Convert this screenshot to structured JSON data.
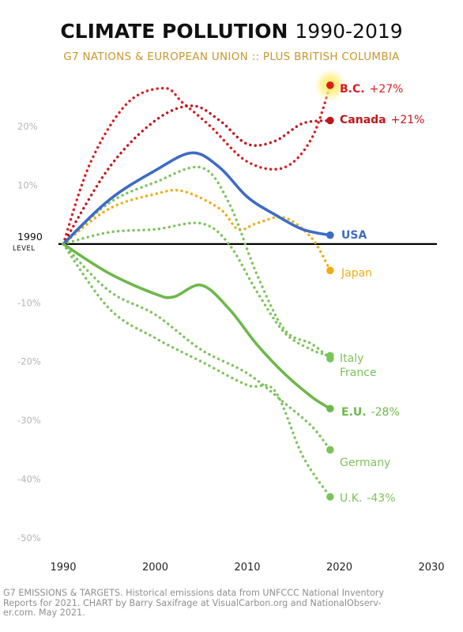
{
  "title": {
    "bold": "CLIMATE POLLUTION",
    "light": "1990-2019"
  },
  "subtitle": "G7 NATIONS & EUROPEAN UNION :: PLUS BRITISH COLUMBIA",
  "baseline": {
    "label": "1990",
    "sublabel": "LEVEL"
  },
  "footnote": "G7 EMISSIONS & TARGETS. Historical emissions data from UNFCCC National Inventory\nReports for 2021. CHART by Barry Saxifrage at VisualCarbon.org and NationalObserv-\ner.com. May 2021.",
  "colors": {
    "red": "#d91e1e",
    "darkred": "#c0161b",
    "blue": "#3d6cc4",
    "orange": "#f0ac16",
    "green": "#6db84a",
    "greenDot": "#7cc35a"
  },
  "chart_data": {
    "type": "line",
    "xlim": [
      1990,
      2030
    ],
    "ylim": [
      -50,
      30
    ],
    "xticks": [
      "1990",
      "2000",
      "2010",
      "2020",
      "2030"
    ],
    "yticks": [
      "20%",
      "10%",
      "",
      "-10%",
      "-20%",
      "-30%",
      "-40%",
      "-50%"
    ],
    "ytick_values": [
      20,
      10,
      0,
      -10,
      -20,
      -30,
      -40,
      -50
    ],
    "series": [
      {
        "name": "B.C.",
        "label": "B.C.",
        "value_label": "+27%",
        "color": "#d91e1e",
        "style": "dotted",
        "highlight": true,
        "x": [
          1990,
          1993,
          1997,
          2001,
          2003,
          2006,
          2010,
          2014,
          2017,
          2019
        ],
        "y": [
          0,
          14,
          24,
          26.5,
          24,
          20,
          14,
          13,
          18,
          27
        ]
      },
      {
        "name": "Canada",
        "label": "Canada",
        "value_label": "+21%",
        "color": "#c0161b",
        "style": "dotted",
        "x": [
          1990,
          1995,
          2000,
          2004,
          2007,
          2010,
          2013,
          2016,
          2019
        ],
        "y": [
          0,
          13,
          21,
          23.5,
          21,
          17,
          17.5,
          20.5,
          21
        ]
      },
      {
        "name": "USA",
        "label": "USA",
        "value_label": "",
        "color": "#3d6cc4",
        "style": "solid",
        "x": [
          1990,
          1995,
          2000,
          2004,
          2007,
          2010,
          2013,
          2016,
          2019
        ],
        "y": [
          0,
          7.5,
          12.5,
          15.5,
          13,
          8,
          5,
          2.5,
          1.5
        ]
      },
      {
        "name": "Japan",
        "label": "Japan",
        "value_label": "",
        "color": "#f0ac16",
        "style": "dotted",
        "x": [
          1990,
          1995,
          2000,
          2003,
          2007,
          2009,
          2011,
          2014,
          2017,
          2019
        ],
        "y": [
          0,
          6,
          8.5,
          9,
          6,
          2.5,
          3.5,
          4.5,
          1,
          -4.5
        ]
      },
      {
        "name": "Italy",
        "label": "Italy",
        "value_label": "",
        "color": "#7cc35a",
        "style": "dotted",
        "x": [
          1990,
          1995,
          2000,
          2005,
          2008,
          2011,
          2014,
          2017,
          2019
        ],
        "y": [
          0,
          7,
          10.5,
          13,
          7,
          -5,
          -14.5,
          -17,
          -19.5
        ]
      },
      {
        "name": "France",
        "label": "France",
        "value_label": "",
        "color": "#7cc35a",
        "style": "dotted",
        "x": [
          1990,
          1995,
          2000,
          2005,
          2008,
          2011,
          2014,
          2017,
          2019
        ],
        "y": [
          0,
          2,
          2.5,
          3.5,
          0,
          -8,
          -15,
          -18,
          -19
        ]
      },
      {
        "name": "E.U.",
        "label": "E.U.",
        "value_label": "-28%",
        "color": "#6db84a",
        "style": "solid",
        "x": [
          1990,
          1995,
          2000,
          2002,
          2005,
          2008,
          2011,
          2014,
          2017,
          2019
        ],
        "y": [
          0,
          -5,
          -8.5,
          -9,
          -7,
          -11,
          -17,
          -22,
          -26,
          -28
        ]
      },
      {
        "name": "Germany",
        "label": "Germany",
        "value_label": "",
        "color": "#7cc35a",
        "style": "dotted",
        "x": [
          1990,
          1995,
          2000,
          2005,
          2010,
          2014,
          2017,
          2019
        ],
        "y": [
          0,
          -8,
          -12,
          -18,
          -22,
          -27,
          -31,
          -35
        ]
      },
      {
        "name": "U.K.",
        "label": "U.K.",
        "value_label": "-43%",
        "color": "#7cc35a",
        "style": "dotted",
        "x": [
          1990,
          1995,
          2000,
          2005,
          2010,
          2013,
          2016,
          2019
        ],
        "y": [
          0,
          -11,
          -16,
          -20,
          -24,
          -25,
          -36,
          -43
        ]
      }
    ]
  }
}
